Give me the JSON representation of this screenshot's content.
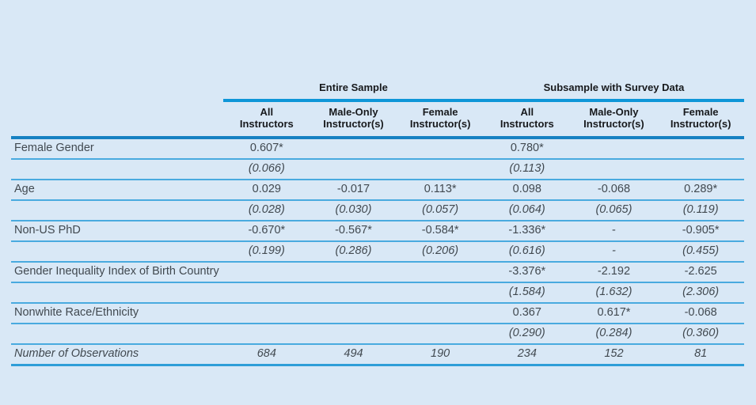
{
  "colors": {
    "background": "#d9e8f6",
    "rule_group": "#0e96d8",
    "rule_header": "#1681c2",
    "rule_row": "#49aadf",
    "rule_bottom": "#2f9ed8",
    "text_header": "#17191c",
    "text_body": "#414950"
  },
  "table": {
    "group_headers": [
      {
        "label": "Entire Sample"
      },
      {
        "label": "Subsample with Survey Data"
      }
    ],
    "column_headers": [
      "All\nInstructors",
      "Male-Only\nInstructor(s)",
      "Female\nInstructor(s)",
      "All\nInstructors",
      "Male-Only\nInstructor(s)",
      "Female\nInstructor(s)"
    ],
    "rows": [
      {
        "label": "Female Gender",
        "style": "coef",
        "cells": [
          "0.607*",
          "",
          "",
          "0.780*",
          "",
          ""
        ]
      },
      {
        "label": "",
        "style": "se",
        "cells": [
          "(0.066)",
          "",
          "",
          "(0.113)",
          "",
          ""
        ]
      },
      {
        "label": "Age",
        "style": "coef",
        "cells": [
          "0.029",
          "-0.017",
          "0.113*",
          "0.098",
          "-0.068",
          "0.289*"
        ]
      },
      {
        "label": "",
        "style": "se",
        "cells": [
          "(0.028)",
          "(0.030)",
          "(0.057)",
          "(0.064)",
          "(0.065)",
          "(0.119)"
        ]
      },
      {
        "label": "Non-US PhD",
        "style": "coef",
        "cells": [
          "-0.670*",
          "-0.567*",
          "-0.584*",
          "-1.336*",
          "-",
          "-0.905*"
        ]
      },
      {
        "label": "",
        "style": "se",
        "cells": [
          "(0.199)",
          "(0.286)",
          "(0.206)",
          "(0.616)",
          "-",
          "(0.455)"
        ]
      },
      {
        "label": "Gender Inequality Index of Birth Country",
        "style": "coef",
        "cells": [
          "",
          "",
          "",
          "-3.376*",
          "-2.192",
          "-2.625"
        ]
      },
      {
        "label": "",
        "style": "se",
        "cells": [
          "",
          "",
          "",
          "(1.584)",
          "(1.632)",
          "(2.306)"
        ]
      },
      {
        "label": "Nonwhite Race/Ethnicity",
        "style": "coef",
        "cells": [
          "",
          "",
          "",
          "0.367",
          "0.617*",
          "-0.068"
        ]
      },
      {
        "label": "",
        "style": "se",
        "cells": [
          "",
          "",
          "",
          "(0.290)",
          "(0.284)",
          "(0.360)"
        ]
      },
      {
        "label": "Number of Observations",
        "style": "obs",
        "cells": [
          "684",
          "494",
          "190",
          "234",
          "152",
          "81"
        ]
      }
    ]
  },
  "chart_data": {
    "type": "table",
    "title": "",
    "column_groups": [
      {
        "label": "Entire Sample",
        "columns": [
          0,
          1,
          2
        ]
      },
      {
        "label": "Subsample with Survey Data",
        "columns": [
          3,
          4,
          5
        ]
      }
    ],
    "columns": [
      "All Instructors",
      "Male-Only Instructor(s)",
      "Female Instructor(s)",
      "All Instructors",
      "Male-Only Instructor(s)",
      "Female Instructor(s)"
    ],
    "rows": [
      {
        "label": "Female Gender",
        "values": [
          "0.607*",
          "",
          "",
          "0.780*",
          "",
          ""
        ],
        "se": [
          "(0.066)",
          "",
          "",
          "(0.113)",
          "",
          ""
        ]
      },
      {
        "label": "Age",
        "values": [
          "0.029",
          "-0.017",
          "0.113*",
          "0.098",
          "-0.068",
          "0.289*"
        ],
        "se": [
          "(0.028)",
          "(0.030)",
          "(0.057)",
          "(0.064)",
          "(0.065)",
          "(0.119)"
        ]
      },
      {
        "label": "Non-US PhD",
        "values": [
          "-0.670*",
          "-0.567*",
          "-0.584*",
          "-1.336*",
          "-",
          "-0.905*"
        ],
        "se": [
          "(0.199)",
          "(0.286)",
          "(0.206)",
          "(0.616)",
          "-",
          "(0.455)"
        ]
      },
      {
        "label": "Gender Inequality Index of Birth Country",
        "values": [
          "",
          "",
          "",
          "-3.376*",
          "-2.192",
          "-2.625"
        ],
        "se": [
          "",
          "",
          "",
          "(1.584)",
          "(1.632)",
          "(2.306)"
        ]
      },
      {
        "label": "Nonwhite Race/Ethnicity",
        "values": [
          "",
          "",
          "",
          "0.367",
          "0.617*",
          "-0.068"
        ],
        "se": [
          "",
          "",
          "",
          "(0.290)",
          "(0.284)",
          "(0.360)"
        ]
      },
      {
        "label": "Number of Observations",
        "values": [
          "684",
          "494",
          "190",
          "234",
          "152",
          "81"
        ],
        "italic": true
      }
    ]
  }
}
